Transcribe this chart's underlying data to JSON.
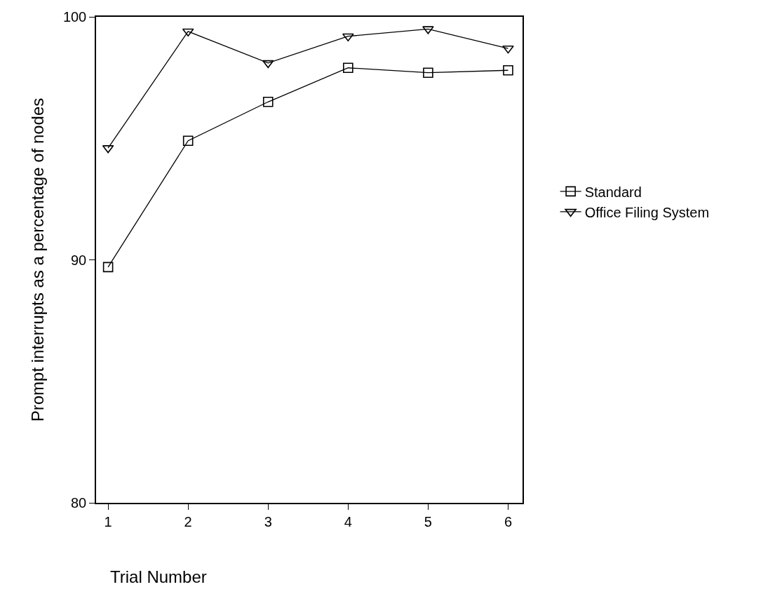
{
  "chart_data": {
    "type": "line",
    "xlabel": "Trial Number",
    "ylabel": "Prompt interrupts as a percentage of nodes",
    "x": [
      1,
      2,
      3,
      4,
      5,
      6
    ],
    "series": [
      {
        "name": "Standard",
        "color": "#000000",
        "marker": "square",
        "values": [
          89.7,
          94.9,
          96.5,
          97.9,
          97.7,
          97.8
        ]
      },
      {
        "name": "Office Filing System",
        "color": "#000000",
        "marker": "triangle",
        "values": [
          94.6,
          99.4,
          98.1,
          99.2,
          99.5,
          98.7
        ]
      }
    ],
    "xlim": [
      0.85,
      6.18
    ],
    "xticks": [
      1,
      2,
      3,
      4,
      5,
      6
    ],
    "ylim": [
      80,
      100
    ],
    "yticks": [
      80,
      90,
      100
    ],
    "grid": false,
    "legend": "right",
    "line_style": "solid"
  }
}
